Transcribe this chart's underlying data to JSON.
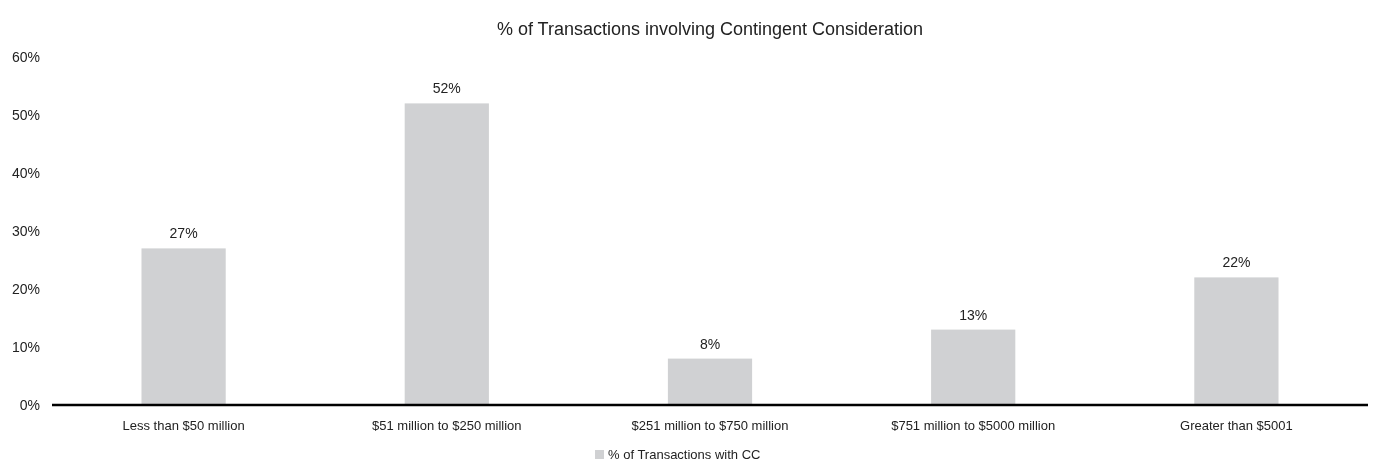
{
  "chart_data": {
    "type": "bar",
    "title": "% of Transactions involving Contingent Consideration",
    "categories": [
      "Less than $50 million",
      "$51 million to $250 million",
      "$251 million to $750 million",
      "$751 million to $5000 million",
      "Greater than $5001"
    ],
    "series": [
      {
        "name": "% of Transactions with CC",
        "color": "#d0d1d3",
        "values": [
          27,
          52,
          8,
          13,
          22
        ],
        "value_labels": [
          "27%",
          "52%",
          "8%",
          "13%",
          "22%"
        ]
      }
    ],
    "ylim": [
      0,
      60
    ],
    "yticks": [
      {
        "value": 0,
        "label": "0%"
      },
      {
        "value": 10,
        "label": "10%"
      },
      {
        "value": 20,
        "label": "20%"
      },
      {
        "value": 30,
        "label": "30%"
      },
      {
        "value": 40,
        "label": "40%"
      },
      {
        "value": 50,
        "label": "50%"
      },
      {
        "value": 60,
        "label": "60%"
      }
    ],
    "grid": false,
    "legend": "bottom"
  }
}
